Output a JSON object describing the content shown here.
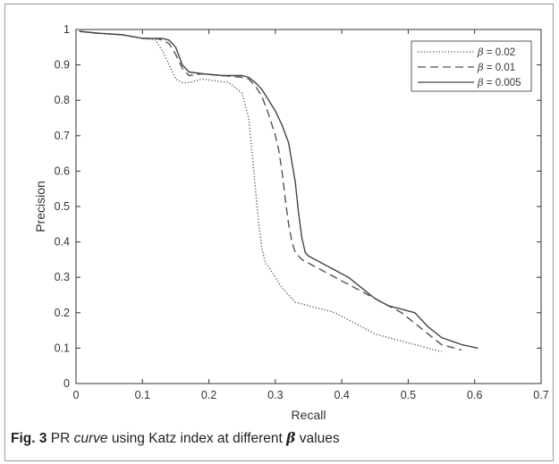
{
  "chart_data": {
    "type": "line",
    "xlabel": "Recall",
    "ylabel": "Precision",
    "xlim": [
      0,
      0.7
    ],
    "ylim": [
      0,
      1
    ],
    "xticks": [
      "0",
      "0.1",
      "0.2",
      "0.3",
      "0.4",
      "0.5",
      "0.6",
      "0.7"
    ],
    "yticks": [
      "0",
      "0.1",
      "0.2",
      "0.3",
      "0.4",
      "0.5",
      "0.6",
      "0.7",
      "0.8",
      "0.9",
      "1"
    ],
    "grid": false,
    "legend_position": "top-right",
    "series": [
      {
        "name": "β = 0.02",
        "beta_symbol": "β",
        "beta_value": " = 0.02",
        "style": "dotted",
        "x": [
          0.005,
          0.03,
          0.07,
          0.1,
          0.12,
          0.13,
          0.14,
          0.15,
          0.16,
          0.17,
          0.19,
          0.21,
          0.23,
          0.25,
          0.26,
          0.265,
          0.27,
          0.275,
          0.28,
          0.285,
          0.29,
          0.3,
          0.31,
          0.32,
          0.33,
          0.35,
          0.37,
          0.39,
          0.41,
          0.43,
          0.45,
          0.47,
          0.49,
          0.51,
          0.53,
          0.55
        ],
        "y": [
          0.995,
          0.99,
          0.985,
          0.975,
          0.97,
          0.94,
          0.9,
          0.86,
          0.85,
          0.85,
          0.86,
          0.855,
          0.85,
          0.82,
          0.75,
          0.65,
          0.55,
          0.45,
          0.38,
          0.34,
          0.33,
          0.3,
          0.27,
          0.25,
          0.23,
          0.22,
          0.21,
          0.2,
          0.18,
          0.16,
          0.14,
          0.13,
          0.12,
          0.11,
          0.1,
          0.09
        ]
      },
      {
        "name": "β = 0.01",
        "beta_symbol": "β",
        "beta_value": " = 0.01",
        "style": "dashed",
        "x": [
          0.005,
          0.03,
          0.07,
          0.1,
          0.12,
          0.13,
          0.14,
          0.15,
          0.16,
          0.17,
          0.19,
          0.22,
          0.25,
          0.26,
          0.27,
          0.28,
          0.29,
          0.3,
          0.305,
          0.31,
          0.315,
          0.32,
          0.325,
          0.33,
          0.34,
          0.35,
          0.37,
          0.39,
          0.41,
          0.43,
          0.45,
          0.47,
          0.49,
          0.51,
          0.53,
          0.55,
          0.58
        ],
        "y": [
          0.995,
          0.99,
          0.985,
          0.975,
          0.975,
          0.97,
          0.96,
          0.93,
          0.89,
          0.87,
          0.875,
          0.87,
          0.865,
          0.86,
          0.84,
          0.81,
          0.76,
          0.7,
          0.66,
          0.6,
          0.52,
          0.45,
          0.4,
          0.37,
          0.35,
          0.34,
          0.32,
          0.3,
          0.28,
          0.26,
          0.24,
          0.22,
          0.2,
          0.17,
          0.14,
          0.11,
          0.095
        ]
      },
      {
        "name": "β = 0.005",
        "beta_symbol": "β",
        "beta_value": " = 0.005",
        "style": "solid",
        "x": [
          0.005,
          0.03,
          0.07,
          0.1,
          0.12,
          0.13,
          0.14,
          0.15,
          0.16,
          0.17,
          0.19,
          0.22,
          0.25,
          0.26,
          0.27,
          0.28,
          0.29,
          0.3,
          0.31,
          0.32,
          0.33,
          0.335,
          0.34,
          0.345,
          0.35,
          0.37,
          0.39,
          0.41,
          0.43,
          0.45,
          0.47,
          0.49,
          0.51,
          0.53,
          0.55,
          0.58,
          0.605
        ],
        "y": [
          0.995,
          0.99,
          0.985,
          0.975,
          0.975,
          0.975,
          0.97,
          0.95,
          0.9,
          0.88,
          0.875,
          0.87,
          0.87,
          0.865,
          0.85,
          0.83,
          0.8,
          0.77,
          0.73,
          0.68,
          0.57,
          0.48,
          0.41,
          0.37,
          0.36,
          0.34,
          0.32,
          0.3,
          0.27,
          0.24,
          0.22,
          0.21,
          0.2,
          0.16,
          0.13,
          0.11,
          0.1
        ]
      }
    ]
  },
  "caption": {
    "label": "Fig. 3",
    "text_before": " PR ",
    "italic_word": "curve",
    "text_after": " using Katz index at different ",
    "beta_symbol": "β",
    "text_end": " values"
  }
}
